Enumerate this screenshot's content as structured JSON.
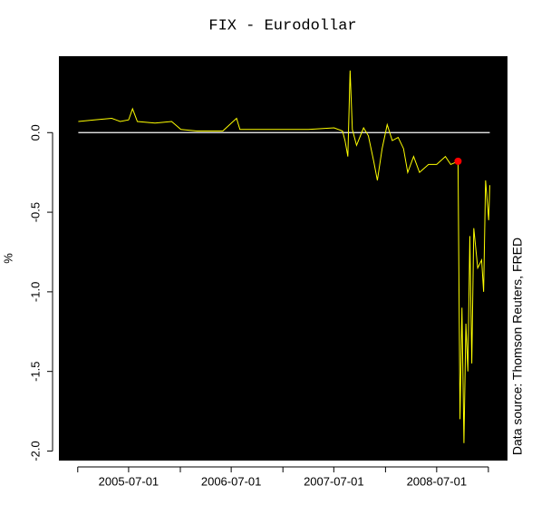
{
  "chart_data": {
    "type": "line",
    "title": "FIX - Eurodollar",
    "ylabel": "%",
    "source": "Data source: Thomson Reuters, FRED",
    "background": "#000000",
    "xlim": [
      "2004-10-26",
      "2009-03-10"
    ],
    "xticks": [
      "2005-07-01",
      "2006-07-01",
      "2007-07-01",
      "2008-07-01"
    ],
    "xminorticks": [
      "2005-01-01",
      "2006-01-01",
      "2007-01-01",
      "2008-01-01",
      "2009-01-01"
    ],
    "ylim": [
      -2.06,
      0.48
    ],
    "yticks": [
      {
        "value": 0,
        "label": "0.0"
      },
      -0.5,
      {
        "value": -1,
        "label": "-1.0"
      },
      -1.5,
      {
        "value": -2,
        "label": "-2.0"
      }
    ],
    "hline": {
      "value": 0,
      "color": "#ffffff"
    },
    "highlight": {
      "x": "2008-09-15",
      "y": -0.18,
      "color": "#ff0000"
    },
    "series": [
      {
        "name": "FIX - Eurodollar",
        "color": "#ffff00",
        "x": [
          "2005-01-03",
          "2005-03-01",
          "2005-05-02",
          "2005-06-01",
          "2005-07-01",
          "2005-07-15",
          "2005-08-01",
          "2005-10-03",
          "2005-12-01",
          "2006-01-03",
          "2006-03-01",
          "2006-06-01",
          "2006-07-20",
          "2006-08-01",
          "2006-11-01",
          "2007-01-03",
          "2007-04-02",
          "2007-07-02",
          "2007-08-01",
          "2007-08-10",
          "2007-08-20",
          "2007-08-28",
          "2007-09-05",
          "2007-09-20",
          "2007-10-15",
          "2007-11-01",
          "2007-11-20",
          "2007-12-03",
          "2007-12-20",
          "2008-01-07",
          "2008-01-25",
          "2008-02-15",
          "2008-03-05",
          "2008-03-20",
          "2008-04-10",
          "2008-05-01",
          "2008-06-02",
          "2008-07-01",
          "2008-08-01",
          "2008-08-20",
          "2008-09-15",
          "2008-09-22",
          "2008-09-29",
          "2008-10-06",
          "2008-10-13",
          "2008-10-20",
          "2008-10-27",
          "2008-11-03",
          "2008-11-10",
          "2008-11-24",
          "2008-12-08",
          "2008-12-15",
          "2008-12-22",
          "2009-01-02",
          "2009-01-06"
        ],
        "values": [
          0.07,
          0.08,
          0.09,
          0.07,
          0.08,
          0.15,
          0.07,
          0.06,
          0.07,
          0.02,
          0.01,
          0.01,
          0.09,
          0.02,
          0.02,
          0.02,
          0.02,
          0.03,
          0.01,
          -0.05,
          -0.15,
          0.39,
          0.02,
          -0.08,
          0.03,
          -0.02,
          -0.18,
          -0.3,
          -0.1,
          0.05,
          -0.05,
          -0.03,
          -0.1,
          -0.25,
          -0.15,
          -0.25,
          -0.2,
          -0.2,
          -0.15,
          -0.2,
          -0.18,
          -1.8,
          -1.1,
          -1.95,
          -1.2,
          -1.5,
          -0.65,
          -1.45,
          -0.6,
          -0.85,
          -0.8,
          -1.0,
          -0.3,
          -0.55,
          -0.33
        ]
      }
    ]
  }
}
